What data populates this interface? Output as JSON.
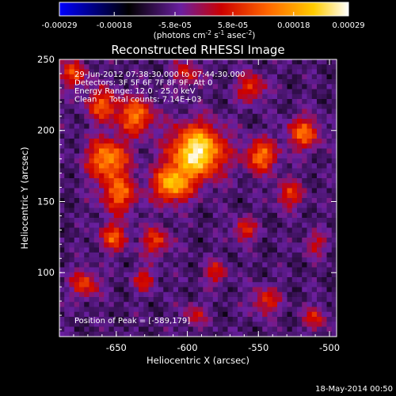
{
  "chart_data": {
    "type": "heatmap",
    "title": "Reconstructed RHESSI Image",
    "xlabel": "Heliocentric X (arcsec)",
    "ylabel": "Heliocentric Y (arcsec)",
    "xlim": [
      -690,
      -495
    ],
    "ylim": [
      55,
      250
    ],
    "x_ticks": [
      "-650",
      "-600",
      "-550",
      "-500"
    ],
    "x_tick_values": [
      -650,
      -600,
      -550,
      -500
    ],
    "y_ticks": [
      "100",
      "150",
      "200",
      "250"
    ],
    "y_tick_values": [
      100,
      150,
      200,
      250
    ],
    "colorbar": {
      "ticks": [
        "-0.00029",
        "-0.00018",
        "-5.8e-05",
        "5.8e-05",
        "0.00018",
        "0.00029"
      ],
      "tick_values": [
        -0.00029,
        -0.00018,
        -5.8e-05,
        5.8e-05,
        0.00018,
        0.00029
      ],
      "range": [
        -0.00029,
        0.00029
      ],
      "label_main": "(photons cm",
      "label_exp1": "-2",
      "label_mid": " s",
      "label_exp2": "-1",
      "label_end": " asec",
      "label_exp3": "-2",
      "label_close": ")",
      "colors": [
        "#0000ff",
        "#000000",
        "#6a1fa0",
        "#cc0000",
        "#ff6600",
        "#ffcc00",
        "#ffffff"
      ]
    },
    "annotations": [
      "29-Jun-2012 07:38:30.000 to 07:44:30.000",
      "Detectors: 3F 5F 6F 7F 8F 9F, Att 0",
      "Energy Range: 12.0 - 25.0 keV",
      "Clean     Total counts: 7.14E+03"
    ],
    "peak_label": "Position of Peak = [-589,179]",
    "peak": [
      -589,
      179
    ],
    "footer_date": "18-May-2014 00:50",
    "sources": [
      {
        "x": -593,
        "y": 185,
        "amp": 1.0,
        "sigma": 13
      },
      {
        "x": -611,
        "y": 162,
        "amp": 0.75,
        "sigma": 9
      },
      {
        "x": -656,
        "y": 180,
        "amp": 0.7,
        "sigma": 10
      },
      {
        "x": -636,
        "y": 210,
        "amp": 0.6,
        "sigma": 9
      },
      {
        "x": -660,
        "y": 218,
        "amp": 0.5,
        "sigma": 8
      },
      {
        "x": -648,
        "y": 155,
        "amp": 0.55,
        "sigma": 9
      },
      {
        "x": -652,
        "y": 125,
        "amp": 0.5,
        "sigma": 7
      },
      {
        "x": -622,
        "y": 122,
        "amp": 0.45,
        "sigma": 7
      },
      {
        "x": -548,
        "y": 182,
        "amp": 0.6,
        "sigma": 8
      },
      {
        "x": -518,
        "y": 198,
        "amp": 0.55,
        "sigma": 8
      },
      {
        "x": -528,
        "y": 155,
        "amp": 0.4,
        "sigma": 7
      },
      {
        "x": -555,
        "y": 230,
        "amp": 0.45,
        "sigma": 7
      },
      {
        "x": -600,
        "y": 240,
        "amp": 0.35,
        "sigma": 7
      },
      {
        "x": -672,
        "y": 92,
        "amp": 0.45,
        "sigma": 7
      },
      {
        "x": -630,
        "y": 95,
        "amp": 0.35,
        "sigma": 6
      },
      {
        "x": -580,
        "y": 100,
        "amp": 0.35,
        "sigma": 6
      },
      {
        "x": -560,
        "y": 130,
        "amp": 0.4,
        "sigma": 6
      },
      {
        "x": -545,
        "y": 80,
        "amp": 0.4,
        "sigma": 7
      },
      {
        "x": -510,
        "y": 68,
        "amp": 0.35,
        "sigma": 6
      },
      {
        "x": -680,
        "y": 240,
        "amp": 0.45,
        "sigma": 7
      },
      {
        "x": -595,
        "y": 70,
        "amp": 0.3,
        "sigma": 6
      },
      {
        "x": -510,
        "y": 120,
        "amp": 0.3,
        "sigma": 6
      }
    ]
  }
}
